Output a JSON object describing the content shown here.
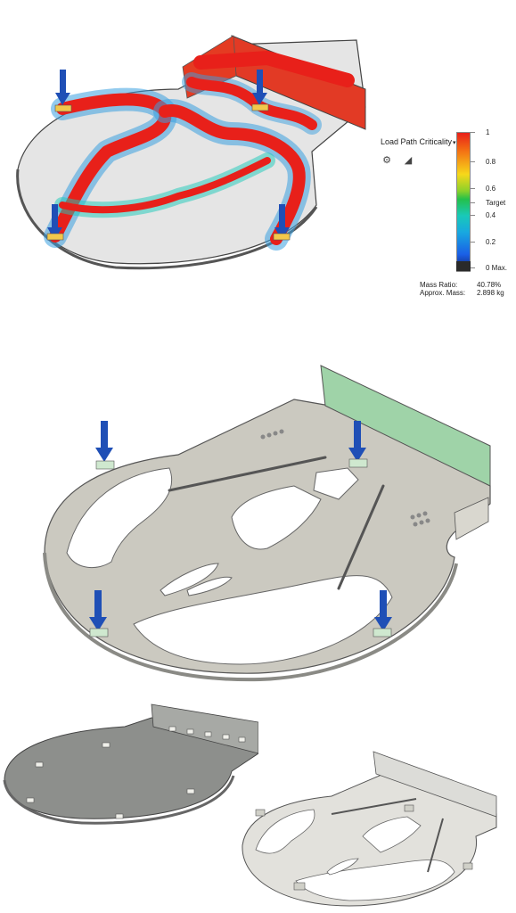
{
  "legend": {
    "title": "Load Path Criticality",
    "dropdown_caret": "▾",
    "settings_icon": "gear-icon",
    "tool_icon": "triangle-ruler-icon",
    "ticks": [
      "1",
      "0.8",
      "0.6",
      "Target",
      "0.4",
      "0.2",
      "0 Max."
    ],
    "gradient_colors": [
      "#e8201a",
      "#f36a13",
      "#f7d81a",
      "#8bd12a",
      "#24c04a",
      "#19c9b9",
      "#18a8e0",
      "#1a5fe6",
      "#10206a"
    ]
  },
  "stats": {
    "mass_ratio_label": "Mass Ratio:",
    "mass_ratio_value": "40.78%",
    "approx_mass_label": "Approx. Mass:",
    "approx_mass_value": "2.898 kg"
  },
  "colors": {
    "load_arrow": "#1f4fb6",
    "plate_gray": "#c8c8c2",
    "heat_red": "#e8201a",
    "wall_green": "#9fd3a8",
    "plate_white": "#efefef"
  }
}
